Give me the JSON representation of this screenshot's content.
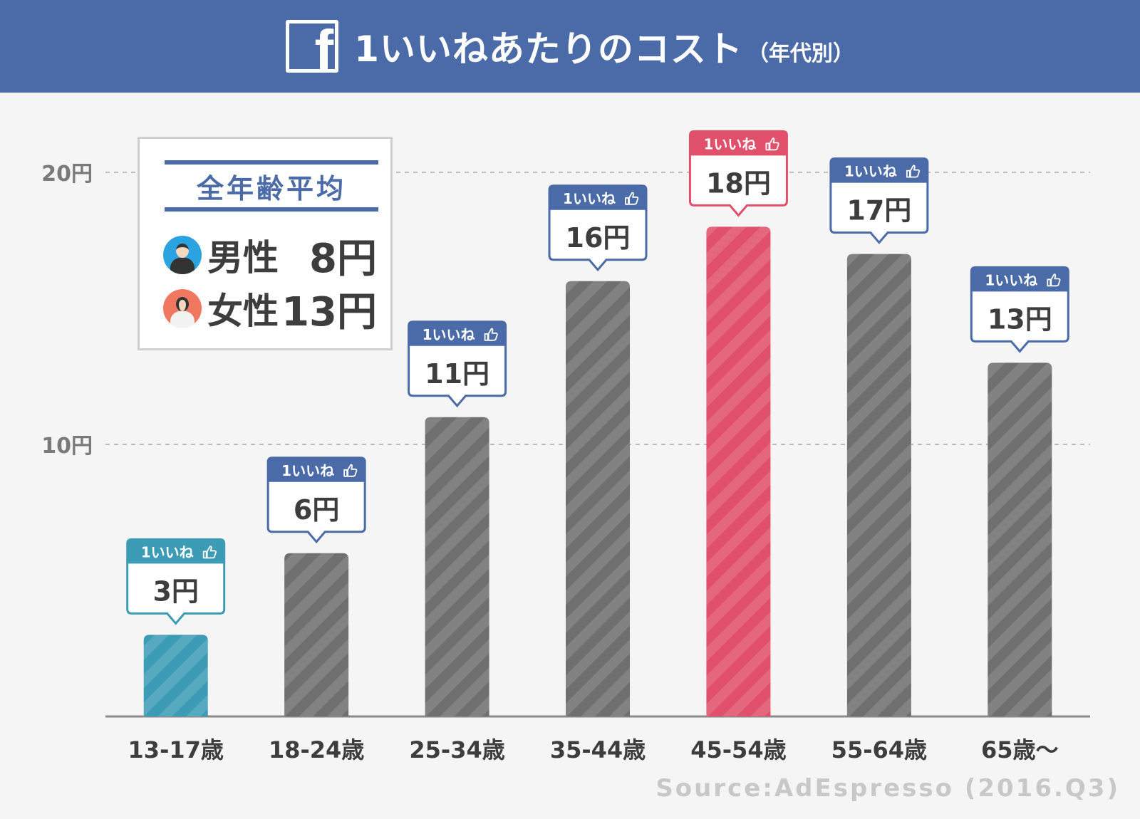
{
  "header": {
    "logo_letter": "f",
    "title": "1いいねあたりのコスト",
    "subtitle": "（年代別）"
  },
  "legend": {
    "title": "全年齢平均",
    "male_label": "男性",
    "male_value": "8円",
    "female_label": "女性",
    "female_value": "13円"
  },
  "source": "Source:AdEspresso (2016.Q3)",
  "colors": {
    "header": "#4a6ba7",
    "bar_default": "#6f6f6f",
    "bar_lowest": "#3d9cb5",
    "bar_highest": "#e0506a",
    "callout_default": "#4a6ba7",
    "callout_lowest": "#3d9cb5",
    "callout_highest": "#e0506a"
  },
  "chart_data": {
    "type": "bar",
    "categories": [
      "13-17歳",
      "18-24歳",
      "25-34歳",
      "35-44歳",
      "45-54歳",
      "55-64歳",
      "65歳～"
    ],
    "values": [
      3,
      6,
      11,
      16,
      18,
      17,
      13
    ],
    "data_labels": [
      "3円",
      "6円",
      "11円",
      "16円",
      "18円",
      "17円",
      "13円"
    ],
    "callout_header": "1いいね",
    "highlight": [
      "lowest",
      "default",
      "default",
      "default",
      "highest",
      "default",
      "default"
    ],
    "yticks": [
      10,
      20
    ],
    "ytick_labels": [
      "10円",
      "20円"
    ],
    "ylim": [
      0,
      20
    ],
    "grid": true
  }
}
